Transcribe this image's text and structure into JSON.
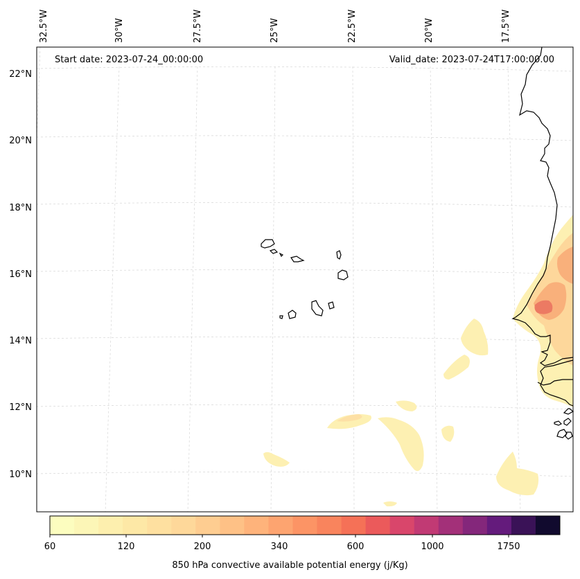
{
  "header": {
    "start_date": "Start date: 2023-07-24_00:00:00",
    "valid_date": "Valid_date: 2023-07-24T17:00:00.00"
  },
  "map": {
    "lon_labels": [
      "32.5°W",
      "30°W",
      "27.5°W",
      "25°W",
      "22.5°W",
      "20°W",
      "17.5°W"
    ],
    "lat_labels": [
      "22°N",
      "20°N",
      "18°N",
      "16°N",
      "14°N",
      "12°N",
      "10°N"
    ],
    "coastline_color": "#000000",
    "gridline_color": "#cccccc",
    "field_colors": {
      "low": "#fcf3b5",
      "mid": "#fdd59a",
      "orange": "#f9a873",
      "red": "#ec6f5e"
    }
  },
  "colorbar": {
    "title": "850 hPa convective available potential energy (j/Kg)",
    "tick_labels": [
      "60",
      "120",
      "200",
      "340",
      "600",
      "1000",
      "1750"
    ],
    "colors": [
      "#fcfdbf",
      "#fcf6b7",
      "#fdefae",
      "#fde8a6",
      "#fee0a0",
      "#fed89a",
      "#fecd91",
      "#fec186",
      "#feb37b",
      "#fda470",
      "#fc9465",
      "#f9845d",
      "#f57157",
      "#eb5a5b",
      "#d9466b",
      "#c13a74",
      "#a33079",
      "#84277b",
      "#641b7c",
      "#3a1257",
      "#110a2e"
    ]
  }
}
